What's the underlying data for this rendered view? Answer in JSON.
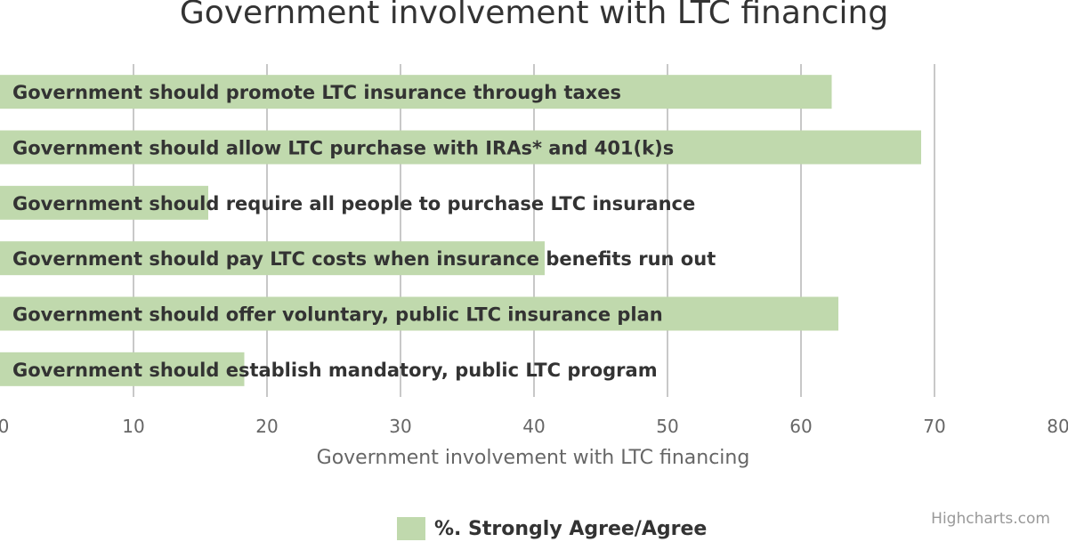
{
  "chart_data": {
    "type": "bar",
    "orientation": "horizontal",
    "title": "Government involvement with LTC financing",
    "xlabel": "Government involvement with LTC financing",
    "xlim": [
      0,
      80
    ],
    "x_ticks": [
      0,
      10,
      20,
      30,
      40,
      50,
      60,
      70,
      80
    ],
    "categories": [
      "Government should promote LTC insurance through taxes",
      "Government should allow LTC purchase with IRAs* and 401(k)s",
      "Government should require all people to purchase LTC insurance",
      "Government should pay LTC costs when insurance benefits run out",
      "Government should offer voluntary, public LTC insurance plan",
      "Government should establish mandatory, public LTC program"
    ],
    "series": [
      {
        "name": "%. Strongly Agree/Agree",
        "color": "#c0d9ad",
        "values": [
          62.3,
          69,
          15.6,
          40.8,
          62.8,
          18.3
        ]
      }
    ],
    "grid": true,
    "legend_position": "bottom-center"
  },
  "credits": "Highcharts.com",
  "colors": {
    "bar": "#c0d9ad",
    "grid": "#c8c8c8",
    "text": "#333333",
    "axis_text": "#666666"
  }
}
